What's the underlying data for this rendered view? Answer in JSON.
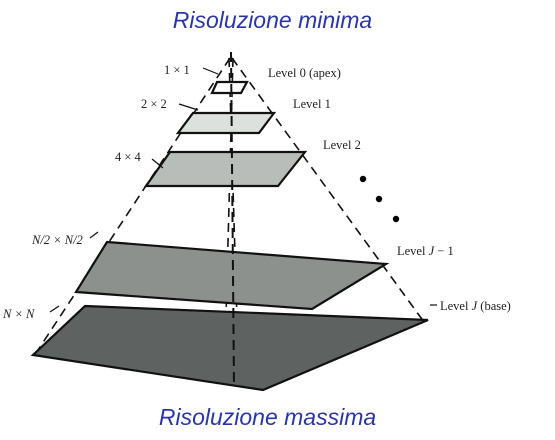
{
  "captions": {
    "top": "Risoluzione minima",
    "bottom": "Risoluzione massima"
  },
  "levels": [
    {
      "size_label": "1 × 1",
      "name_prefix": "Level 0 (apex)",
      "name_var": "",
      "name_suffix": "",
      "fill": "#ffffff"
    },
    {
      "size_label": "2 × 2",
      "name_prefix": "Level 1",
      "name_var": "",
      "name_suffix": "",
      "fill": "#dde1dd"
    },
    {
      "size_label": "4 × 4",
      "name_prefix": "Level 2",
      "name_var": "",
      "name_suffix": "",
      "fill": "#b9bdba"
    },
    {
      "size_label": "N/2 × N/2",
      "name_prefix": "Level ",
      "name_var": "J",
      "name_suffix": " − 1",
      "fill": "#8c918e"
    },
    {
      "size_label": "N × N",
      "name_prefix": "Level ",
      "name_var": "J",
      "name_suffix": " (base)",
      "fill": "#5e6361"
    }
  ],
  "colors": {
    "caption": "#2a35a8",
    "lines": "#111111"
  }
}
